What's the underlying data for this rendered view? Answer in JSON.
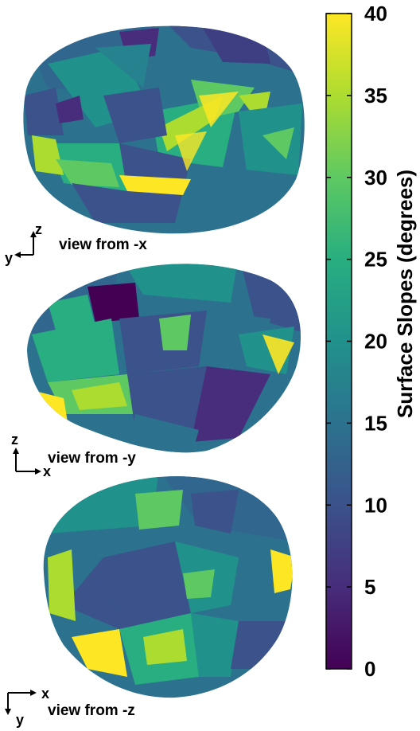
{
  "views": [
    {
      "id": "x",
      "label": "view from -x",
      "axis_h": "y",
      "axis_v": "z"
    },
    {
      "id": "y",
      "label": "view from -y",
      "axis_h": "x",
      "axis_v": "z"
    },
    {
      "id": "z",
      "label": "view from -z",
      "axis_h": "x",
      "axis_v": "y"
    }
  ],
  "colorbar": {
    "title": "Surface Slopes (degrees)",
    "ticks": [
      "0",
      "5",
      "10",
      "15",
      "20",
      "25",
      "30",
      "35",
      "40"
    ],
    "min": 0,
    "max": 40,
    "colormap": "viridis",
    "colors": [
      "#440154",
      "#472d7b",
      "#3b528b",
      "#2c728e",
      "#21918c",
      "#28ae80",
      "#5ec962",
      "#addc30",
      "#fde725"
    ]
  }
}
